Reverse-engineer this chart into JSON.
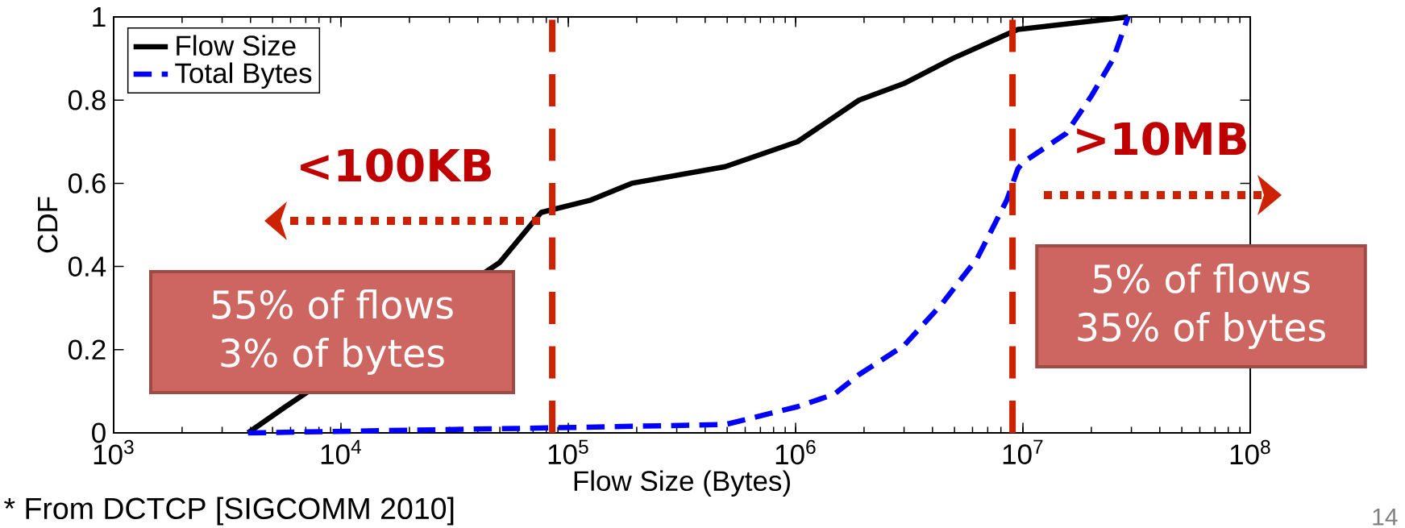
{
  "chart_data": {
    "type": "line",
    "xlabel": "Flow Size (Bytes)",
    "ylabel": "CDF",
    "log": "x",
    "xlim": [
      1000,
      100000000
    ],
    "ylim": [
      0,
      1
    ],
    "xticks": [
      {
        "value": 1000,
        "label": "10$^{3}$"
      },
      {
        "value": 10000,
        "label": "10$^{4}$"
      },
      {
        "value": 100000,
        "label": "10$^{5}$"
      },
      {
        "value": 1000000,
        "label": "10$^{6}$"
      },
      {
        "value": 10000000,
        "label": "10$^{7}$"
      },
      {
        "value": 100000000,
        "label": "10$^{8}$"
      }
    ],
    "yticks": [
      0,
      0.2,
      0.4,
      0.6,
      0.8,
      1
    ],
    "series": [
      {
        "name": "Flow Size",
        "color": "#000000",
        "line_style": "solid",
        "x": [
          3900,
          5600,
          50000,
          76000,
          126000,
          190000,
          490000,
          1020000,
          1900000,
          3000000,
          4900000,
          9500000,
          29000000
        ],
        "values": [
          0,
          0.06,
          0.41,
          0.53,
          0.56,
          0.6,
          0.64,
          0.7,
          0.8,
          0.84,
          0.9,
          0.97,
          1.0
        ]
      },
      {
        "name": "Total Bytes",
        "color": "#0000ff",
        "line_style": "dashed",
        "x": [
          3900,
          81000,
          490000,
          1020000,
          1480000,
          1900000,
          3000000,
          4400000,
          6300000,
          8500000,
          9500000,
          10000000,
          15500000,
          20000000,
          25000000,
          29000000
        ],
        "values": [
          0,
          0.012,
          0.02,
          0.063,
          0.093,
          0.14,
          0.21,
          0.31,
          0.42,
          0.56,
          0.635,
          0.65,
          0.72,
          0.81,
          0.9,
          1.0
        ]
      }
    ],
    "ref_lines": [
      {
        "axis": "x",
        "value": 85000,
        "color": "#cc2200",
        "line_style": "dashed"
      },
      {
        "axis": "x",
        "value": 9000000,
        "color": "#cc2200",
        "line_style": "dashed"
      }
    ],
    "annotations": [
      "<100KB",
      ">10MB",
      "55% of flows",
      "3% of bytes",
      "5% of flows",
      "35% of bytes",
      "* From DCTCP [SIGCOMM 2010]",
      "14"
    ],
    "legend": "top left",
    "grid": false,
    "marker": "none"
  }
}
